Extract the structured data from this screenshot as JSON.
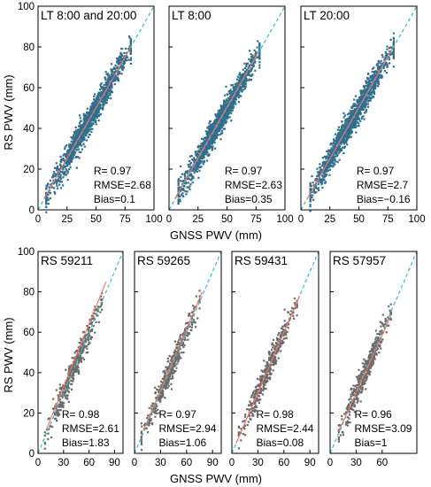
{
  "figure": {
    "top_xlabel": "GNSS PWV (mm)",
    "bottom_xlabel": "GNSS PWV (mm)",
    "top_ylabel": "RS PWV (mm)",
    "bottom_ylabel": "RS PWV (mm)"
  },
  "chart_data": [
    {
      "type": "scatter",
      "title": "LT 8:00 and 20:00",
      "xlim": [
        0,
        100
      ],
      "ylim": [
        0,
        100
      ],
      "xticks": [
        "0",
        "25",
        "50",
        "75",
        "100"
      ],
      "yticks": [
        "0",
        "20",
        "40",
        "60",
        "80",
        "100"
      ],
      "marker_color": "#2f6f8f",
      "x_range": [
        7,
        80
      ],
      "fit_line": {
        "x": [
          5,
          80
        ],
        "y": [
          5.5,
          80
        ]
      },
      "stats": {
        "r": "R= 0.97",
        "rmse": "RMSE=2.68",
        "bias": "Bias=0.1"
      }
    },
    {
      "type": "scatter",
      "title": "LT 8:00",
      "xlim": [
        0,
        100
      ],
      "ylim": [
        0,
        100
      ],
      "xticks": [
        "0",
        "25",
        "50",
        "75",
        "100"
      ],
      "yticks": [],
      "marker_color": "#2f6f8f",
      "x_range": [
        8,
        78
      ],
      "fit_line": {
        "x": [
          5,
          77
        ],
        "y": [
          5.5,
          77.5
        ]
      },
      "stats": {
        "r": "R= 0.97",
        "rmse": "RMSE=2.63",
        "bias": "Bias=0.35"
      }
    },
    {
      "type": "scatter",
      "title": "LT 20:00",
      "xlim": [
        0,
        100
      ],
      "ylim": [
        0,
        100
      ],
      "xticks": [
        "0",
        "25",
        "50",
        "75",
        "100"
      ],
      "yticks": [],
      "marker_color": "#2f6f8f",
      "x_range": [
        8,
        80
      ],
      "fit_line": {
        "x": [
          5,
          80
        ],
        "y": [
          5.0,
          80.5
        ]
      },
      "stats": {
        "r": "R= 0.97",
        "rmse": "RMSE=2.7",
        "bias": "Bias=−0.16"
      }
    },
    {
      "type": "scatter",
      "title": "RS 59211",
      "xlim": [
        0,
        100
      ],
      "ylim": [
        0,
        100
      ],
      "xticks": [
        "0",
        "30",
        "60",
        "90"
      ],
      "yticks": [
        "0",
        "20",
        "40",
        "60",
        "80",
        "100"
      ],
      "marker_color": "#6b6b6b",
      "x_range": [
        8,
        75
      ],
      "fit_line": {
        "x": [
          10,
          80
        ],
        "y": [
          12,
          85
        ]
      },
      "stats": {
        "r": "R= 0.98",
        "rmse": "RMSE=2.61",
        "bias": "Bias=1.83"
      }
    },
    {
      "type": "scatter",
      "title": "RS 59265",
      "xlim": [
        0,
        100
      ],
      "ylim": [
        0,
        100
      ],
      "xticks": [
        "0",
        "30",
        "60",
        "90"
      ],
      "yticks": [],
      "marker_color": "#6b6b6b",
      "x_range": [
        8,
        75
      ],
      "fit_line": {
        "x": [
          10,
          78
        ],
        "y": [
          11,
          80
        ]
      },
      "stats": {
        "r": "R= 0.97",
        "rmse": "RMSE=2.94",
        "bias": "Bias=1.06"
      }
    },
    {
      "type": "scatter",
      "title": "RS 59431",
      "xlim": [
        0,
        100
      ],
      "ylim": [
        0,
        100
      ],
      "xticks": [
        "0",
        "30",
        "60",
        "90"
      ],
      "yticks": [],
      "marker_color": "#6b6b6b",
      "x_range": [
        8,
        75
      ],
      "fit_line": {
        "x": [
          5,
          78
        ],
        "y": [
          5,
          78
        ]
      },
      "stats": {
        "r": "R= 0.98",
        "rmse": "RMSE=2.44",
        "bias": "Bias=0.08"
      }
    },
    {
      "type": "scatter",
      "title": "RS 57957",
      "xlim": [
        0,
        100
      ],
      "ylim": [
        0,
        100
      ],
      "xticks": [
        "0",
        "30",
        "60"
      ],
      "yticks": [],
      "marker_color": "#6b6b6b",
      "x_range": [
        10,
        70
      ],
      "fit_line": {
        "x": [
          10,
          70
        ],
        "y": [
          11,
          68
        ]
      },
      "stats": {
        "r": "R= 0.96",
        "rmse": "RMSE=3.09",
        "bias": "Bias=1"
      }
    }
  ]
}
